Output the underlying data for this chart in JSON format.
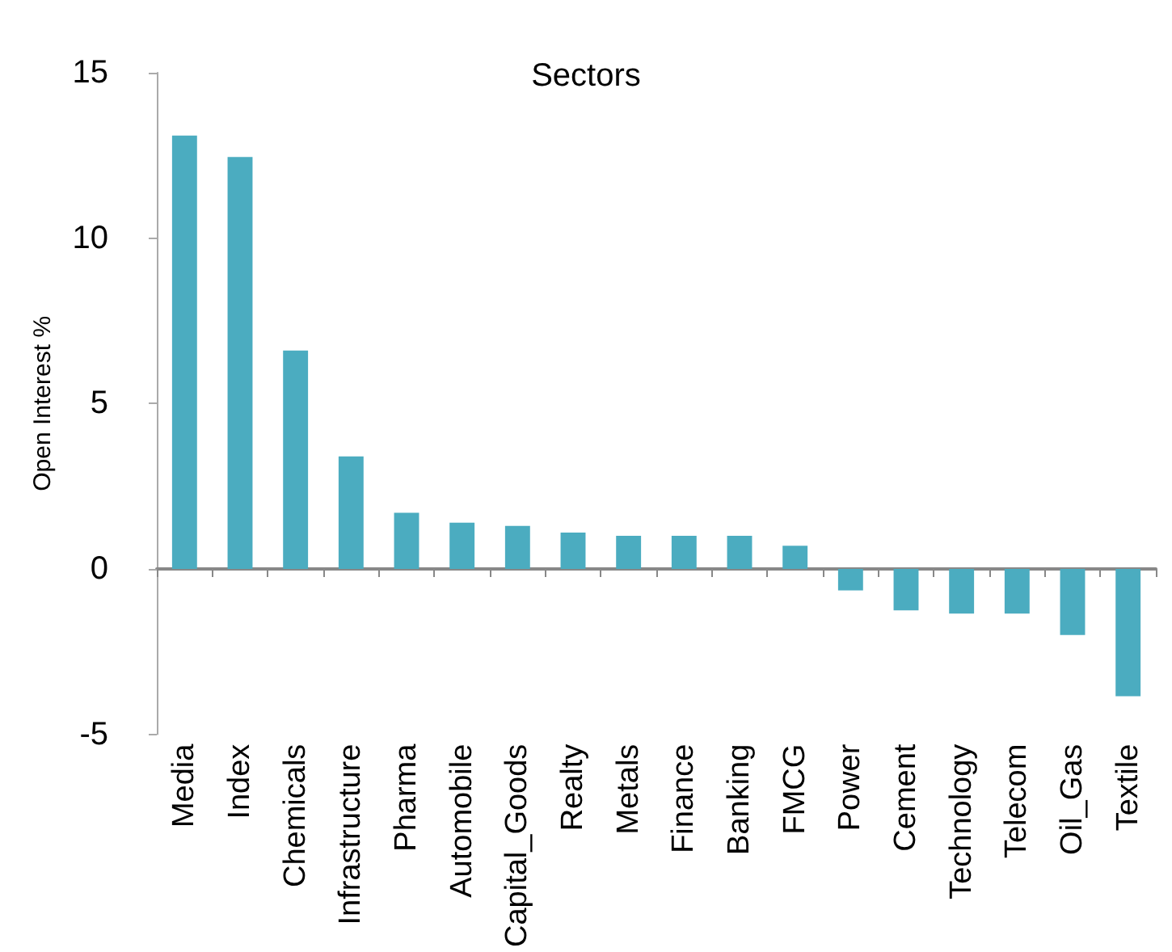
{
  "chart_data": {
    "type": "bar",
    "title": "Sectors",
    "ylabel": "Open Interest %",
    "categories": [
      "Media",
      "Index",
      "Chemicals",
      "Infrastructure",
      "Pharma",
      "Automobile",
      "Capital_Goods",
      "Realty",
      "Metals",
      "Finance",
      "Banking",
      "FMCG",
      "Power",
      "Cement",
      "Technology",
      "Telecom",
      "Oil_Gas",
      "Textile"
    ],
    "values": [
      13.1,
      12.45,
      6.6,
      3.4,
      1.7,
      1.4,
      1.3,
      1.1,
      1.0,
      1.0,
      1.0,
      0.7,
      -0.65,
      -1.25,
      -1.35,
      -1.35,
      -2.0,
      -3.85
    ],
    "color": "#4bacc0",
    "ylim": [
      -5,
      15
    ],
    "yticks": [
      -5,
      0,
      5,
      10,
      15
    ]
  }
}
